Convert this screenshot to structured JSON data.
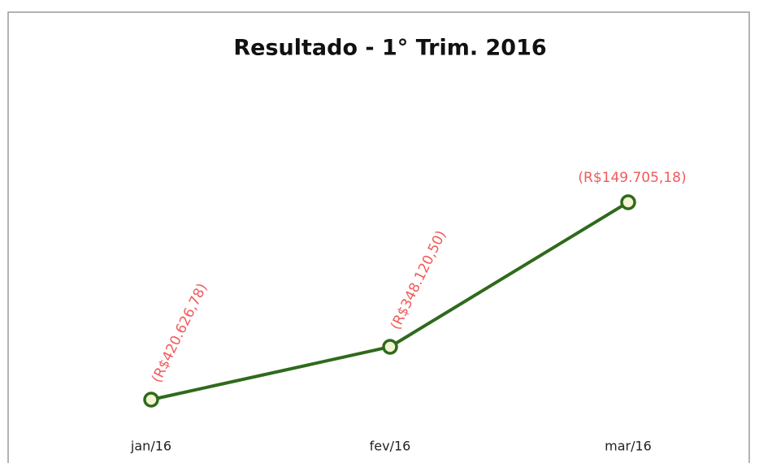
{
  "chart_data": {
    "type": "line",
    "title": "Resultado - 1° Trim. 2016",
    "categories": [
      "jan/16",
      "fev/16",
      "mar/16"
    ],
    "series": [
      {
        "name": "Resultado",
        "color": "#2f6a1c",
        "values": [
          -420626.78,
          -348120.5,
          -149705.18
        ],
        "value_labels": [
          "(R$420.626,78)",
          "(R$348.120,50)",
          "(R$149.705,18)"
        ]
      }
    ],
    "label_color": "#f25a5a"
  }
}
